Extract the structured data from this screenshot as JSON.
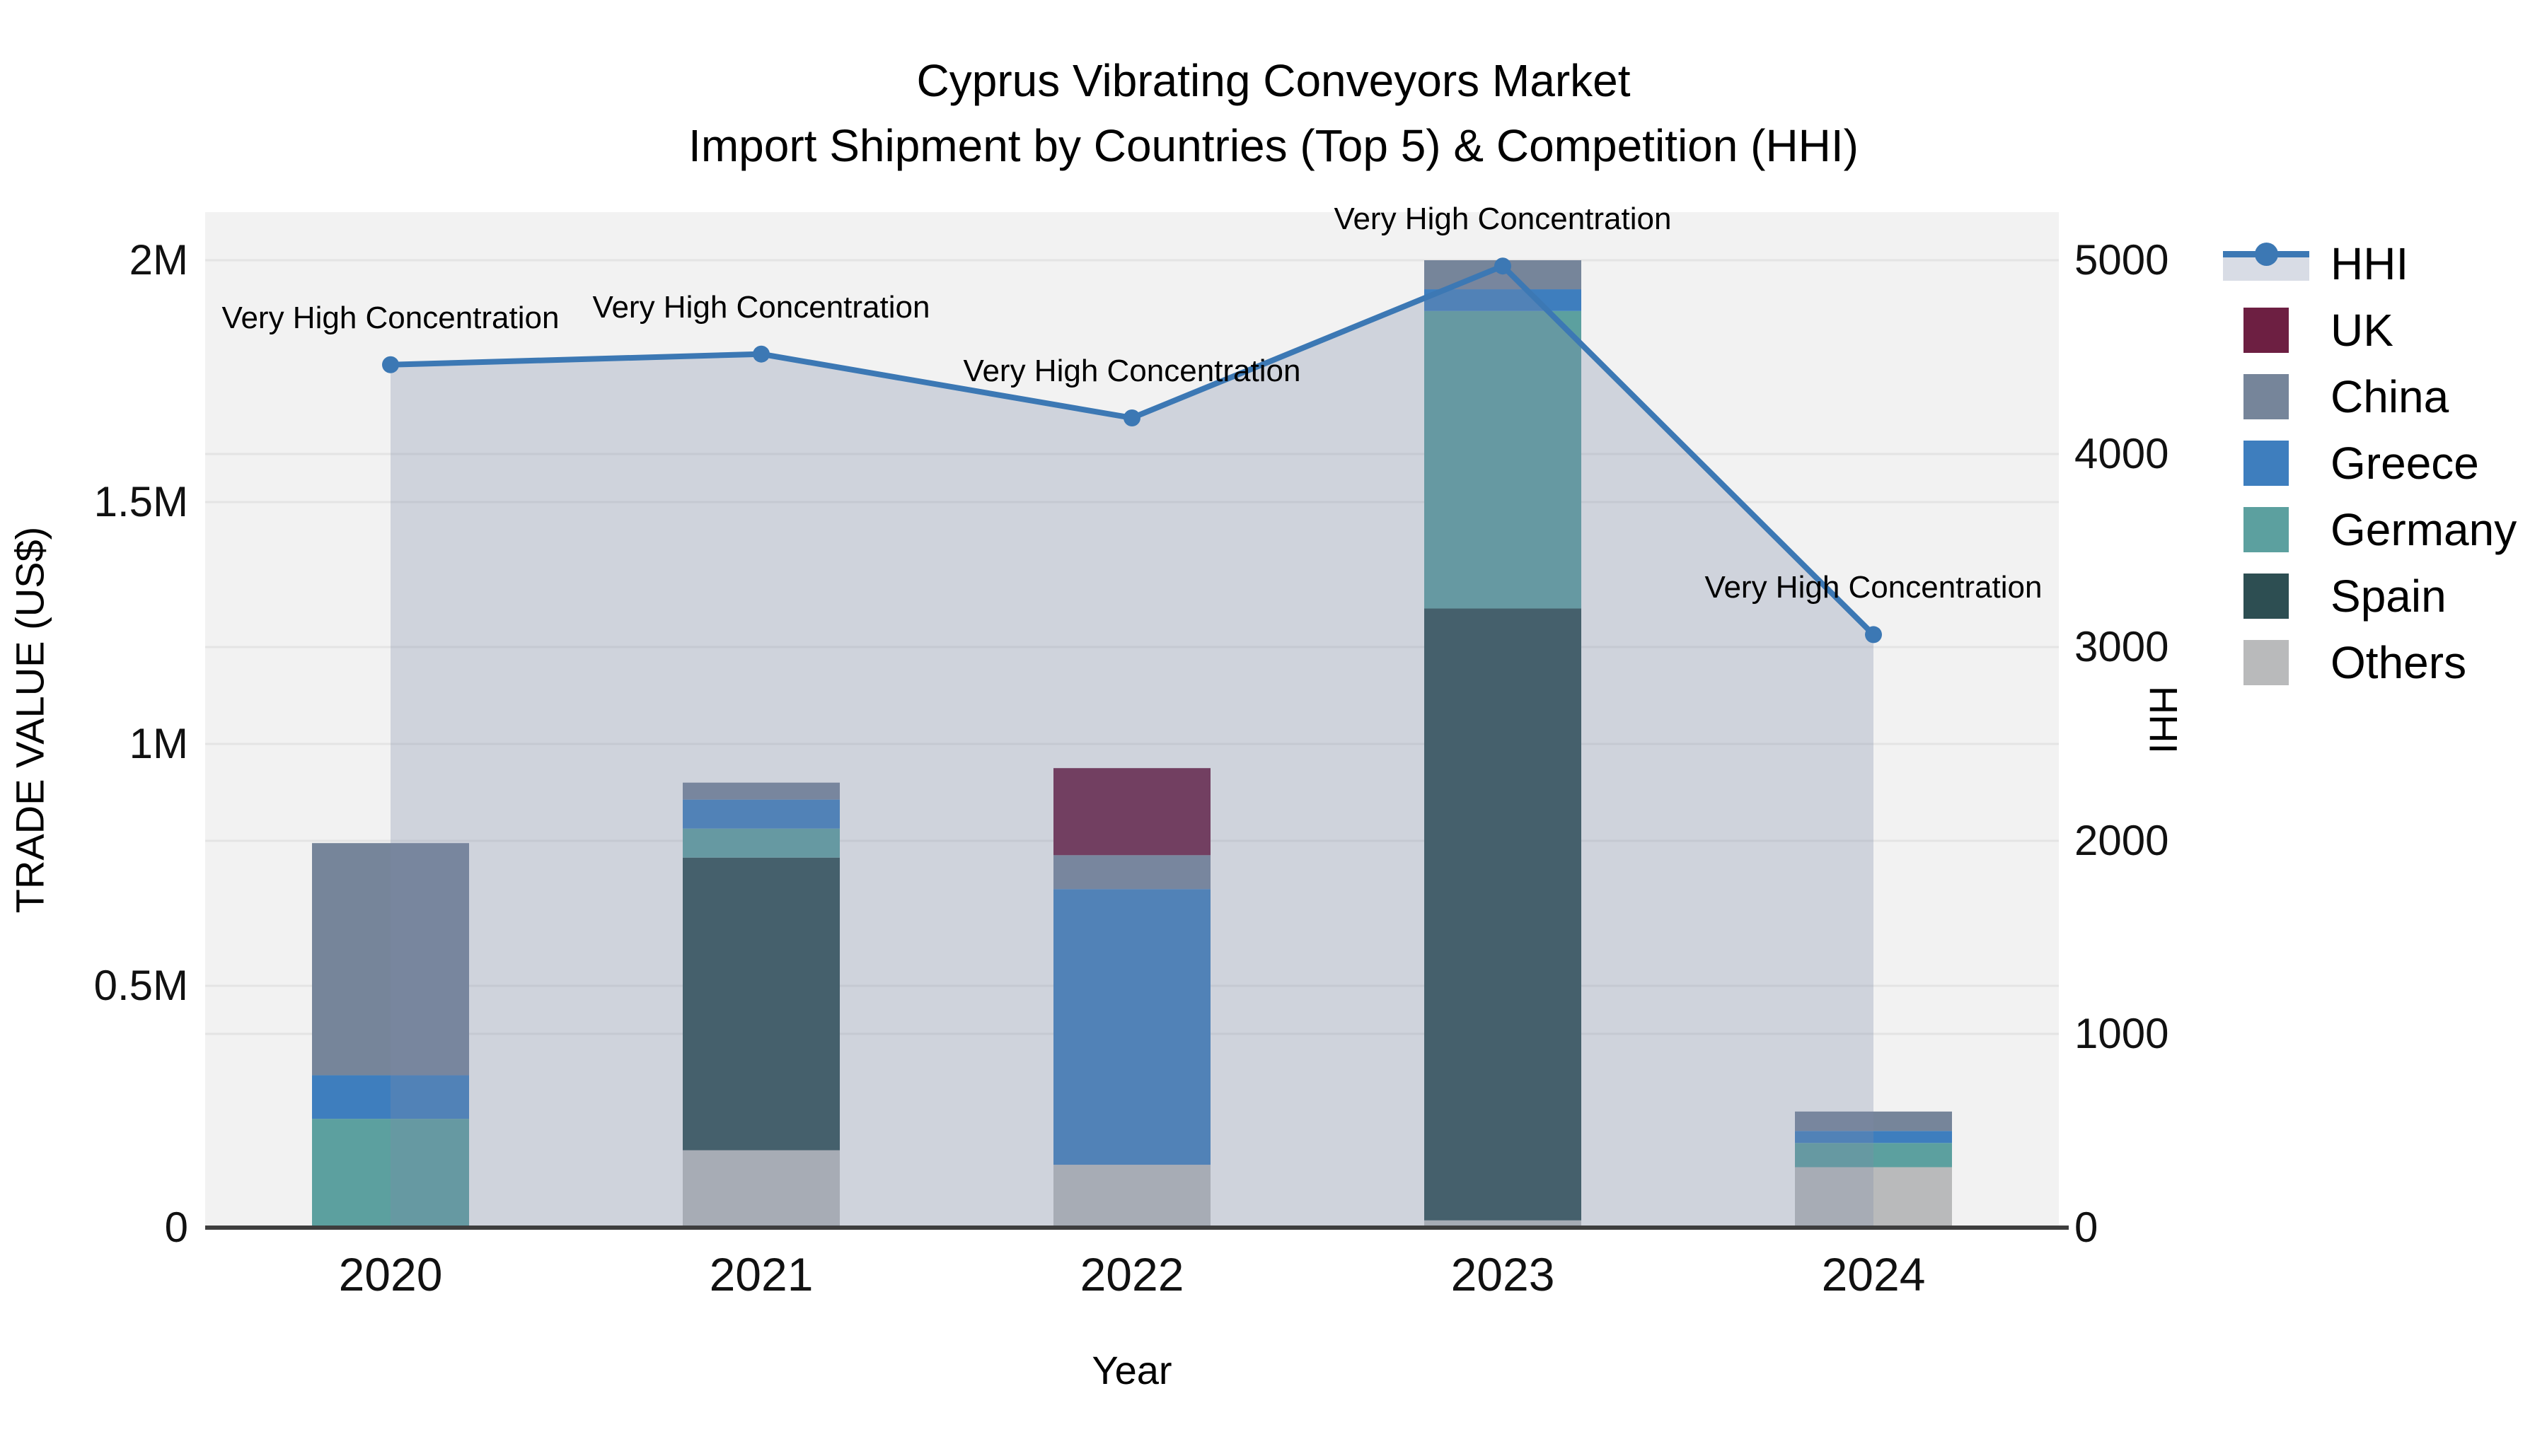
{
  "title": {
    "line1": "Cyprus Vibrating Conveyors Market",
    "line2": "Import Shipment by Countries (Top 5) & Competition (HHI)"
  },
  "axes": {
    "x": {
      "title": "Year",
      "tick_labels": [
        "2020",
        "2021",
        "2022",
        "2023",
        "2024"
      ]
    },
    "y_left": {
      "title": "TRADE VALUE (US$)",
      "tick_labels": [
        "0",
        "0.5M",
        "1M",
        "1.5M",
        "2M"
      ],
      "tick_values": [
        0,
        500000,
        1000000,
        1500000,
        2000000
      ],
      "range": [
        0,
        2000000
      ]
    },
    "y_right": {
      "title": "HHI",
      "tick_labels": [
        "0",
        "1000",
        "2000",
        "3000",
        "4000",
        "5000"
      ],
      "tick_values": [
        0,
        1000,
        2000,
        3000,
        4000,
        5000
      ],
      "range": [
        0,
        5000
      ]
    }
  },
  "legend": [
    {
      "label": "HHI",
      "kind": "line",
      "color": "#3C78B4",
      "band_color": "rgba(125,140,170,0.30)"
    },
    {
      "label": "UK",
      "kind": "swatch",
      "color": "#6D1F42"
    },
    {
      "label": "China",
      "kind": "swatch",
      "color": "#76859A"
    },
    {
      "label": "Greece",
      "kind": "swatch",
      "color": "#3E7EBE"
    },
    {
      "label": "Germany",
      "kind": "swatch",
      "color": "#5CA09F"
    },
    {
      "label": "Spain",
      "kind": "swatch",
      "color": "#2D4E52"
    },
    {
      "label": "Others",
      "kind": "swatch",
      "color": "#B9BABB"
    }
  ],
  "chart_data": {
    "type": [
      "bar",
      "area"
    ],
    "title": "Cyprus Vibrating Conveyors Market — Import Shipment by Countries (Top 5) & Competition (HHI)",
    "categories": [
      "2020",
      "2021",
      "2022",
      "2023",
      "2024"
    ],
    "xlabel": "Year",
    "ylabel_left": "TRADE VALUE (US$)",
    "ylabel_right": "HHI",
    "ylim_left": [
      0,
      2000000
    ],
    "ylim_right": [
      0,
      5000
    ],
    "grid": true,
    "legend_position": "right",
    "stack_order_bottom_to_top": [
      "Others",
      "Spain",
      "Germany",
      "Greece",
      "China",
      "UK"
    ],
    "series": [
      {
        "name": "UK",
        "type": "bar",
        "color": "#6D1F42",
        "values": [
          0,
          0,
          180000,
          0,
          0
        ]
      },
      {
        "name": "China",
        "type": "bar",
        "color": "#76859A",
        "values": [
          480000,
          35000,
          70000,
          60000,
          40000
        ]
      },
      {
        "name": "Greece",
        "type": "bar",
        "color": "#3E7EBE",
        "values": [
          90000,
          60000,
          570000,
          45000,
          25000
        ]
      },
      {
        "name": "Germany",
        "type": "bar",
        "color": "#5CA09F",
        "values": [
          225000,
          60000,
          0,
          615000,
          50000
        ]
      },
      {
        "name": "Spain",
        "type": "bar",
        "color": "#2D4E52",
        "values": [
          0,
          605000,
          0,
          1265000,
          0
        ]
      },
      {
        "name": "Others",
        "type": "bar",
        "color": "#B9BABB",
        "values": [
          0,
          160000,
          130000,
          15000,
          125000
        ]
      }
    ],
    "hhi": {
      "name": "HHI",
      "type": "line-area",
      "line_color": "#3C78B4",
      "fill_color": "rgba(125,140,170,0.30)",
      "values": [
        4460,
        4515,
        4185,
        4970,
        3065
      ],
      "annotations": [
        "Very High Concentration",
        "Very High Concentration",
        "Very High Concentration",
        "Very High Concentration",
        "Very High Concentration"
      ]
    },
    "plot_bg": "#F2F2F2",
    "gridline_color": "#E4E4E4",
    "axisline_color": "#3E3E3E"
  }
}
